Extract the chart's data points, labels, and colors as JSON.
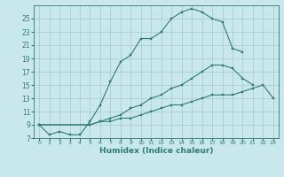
{
  "xlabel": "Humidex (Indice chaleur)",
  "line_color": "#2e7d6e",
  "bg_color": "#c8e8ee",
  "grid_color": "#a8c8d0",
  "ylim": [
    7,
    27
  ],
  "yticks": [
    7,
    9,
    11,
    13,
    15,
    17,
    19,
    21,
    23,
    25
  ],
  "xlim": [
    -0.5,
    23.5
  ],
  "xticks": [
    0,
    1,
    2,
    3,
    4,
    5,
    6,
    7,
    8,
    9,
    10,
    11,
    12,
    13,
    14,
    15,
    16,
    17,
    18,
    19,
    20,
    21,
    22,
    23
  ],
  "curve1_x": [
    0,
    1,
    2,
    3,
    4,
    5,
    6,
    7,
    8,
    9,
    10,
    11,
    12,
    13,
    14,
    15,
    16,
    17,
    18,
    19,
    20
  ],
  "curve1_y": [
    9,
    7.5,
    8,
    7.5,
    7.5,
    9.5,
    12,
    15.5,
    18.5,
    19.5,
    22,
    22,
    23,
    25,
    26,
    26.5,
    26,
    25,
    24.5,
    20.5,
    20
  ],
  "curve2_x": [
    0,
    5,
    6,
    7,
    8,
    9,
    10,
    11,
    12,
    13,
    14,
    15,
    16,
    17,
    18,
    19,
    20,
    21
  ],
  "curve2_y": [
    9,
    9,
    9.5,
    10,
    10.5,
    11.5,
    12,
    13,
    13.5,
    14.5,
    15,
    16,
    17,
    18,
    18,
    17.5,
    16,
    15
  ],
  "curve3_x": [
    0,
    5,
    6,
    7,
    8,
    9,
    10,
    11,
    12,
    13,
    14,
    15,
    16,
    17,
    18,
    19,
    20,
    21,
    22,
    23
  ],
  "curve3_y": [
    9,
    9,
    9.5,
    9.5,
    10,
    10,
    10.5,
    11,
    11.5,
    12,
    12,
    12.5,
    13,
    13.5,
    13.5,
    13.5,
    14,
    14.5,
    15,
    13
  ]
}
